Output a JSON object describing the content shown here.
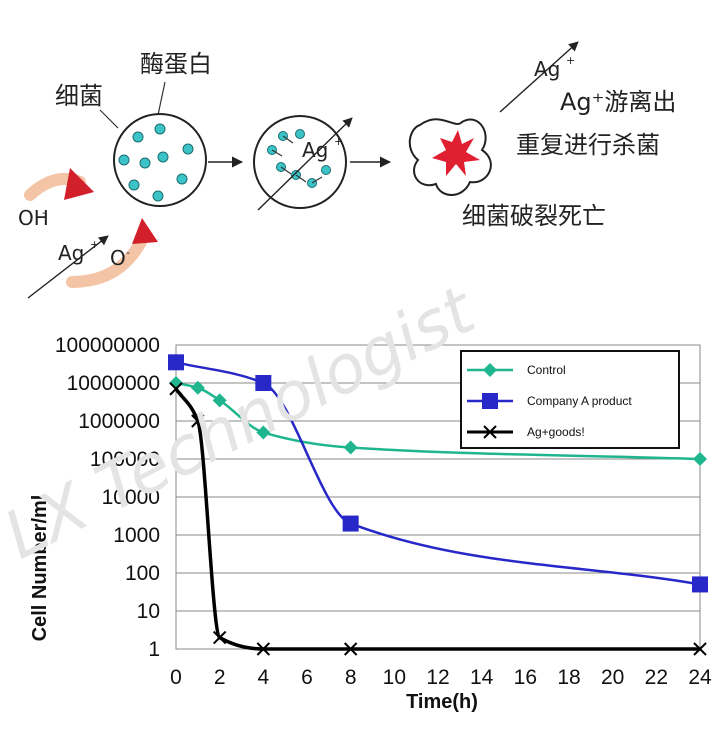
{
  "diagram": {
    "bacteria_label": "细菌",
    "enzyme_label": "酶蛋白",
    "ag_label": "Ag",
    "ag_sup": "+",
    "oh_label": "OH",
    "oh_sup": "-",
    "o_label": "O",
    "o_sup": "-",
    "free_label": "Ag⁺游离出",
    "repeat_label": "重复进行杀菌",
    "death_label": "细菌破裂死亡",
    "colors": {
      "enzyme": "#3cc3c8",
      "arrow_red": "#d2202a",
      "burst": "#e02030"
    }
  },
  "watermark": "LX Technologist",
  "chart_data": {
    "type": "line",
    "xlabel": "Time(h)",
    "ylabel": "Cell Number/ml",
    "yscale": "log",
    "xlim": [
      0,
      24
    ],
    "ylim": [
      1,
      100000000
    ],
    "x_ticks": [
      "0",
      "2",
      "4",
      "6",
      "8",
      "10",
      "12",
      "14",
      "16",
      "18",
      "20",
      "22",
      "24"
    ],
    "y_ticks": [
      "1",
      "10",
      "100",
      "1000",
      "10000",
      "100000",
      "1000000",
      "10000000",
      "100000000"
    ],
    "grid": "horizontal",
    "legend_position": "top-right",
    "series": [
      {
        "name": "Control",
        "color": "#1fb58f",
        "marker": "diamond",
        "x": [
          0,
          1,
          2,
          4,
          8,
          24
        ],
        "y": [
          10000000,
          7500000,
          3500000,
          500000,
          200000,
          100000
        ]
      },
      {
        "name": "Company A product",
        "color": "#2828c8",
        "marker": "square",
        "x": [
          0,
          4,
          8,
          24
        ],
        "y": [
          35000000,
          10000000,
          2000,
          50
        ]
      },
      {
        "name": "Ag+goods!",
        "color": "#000000",
        "marker": "x",
        "x": [
          0,
          1,
          2,
          4,
          8,
          24
        ],
        "y": [
          7000000,
          1000000,
          2,
          1,
          1,
          1
        ]
      }
    ]
  }
}
